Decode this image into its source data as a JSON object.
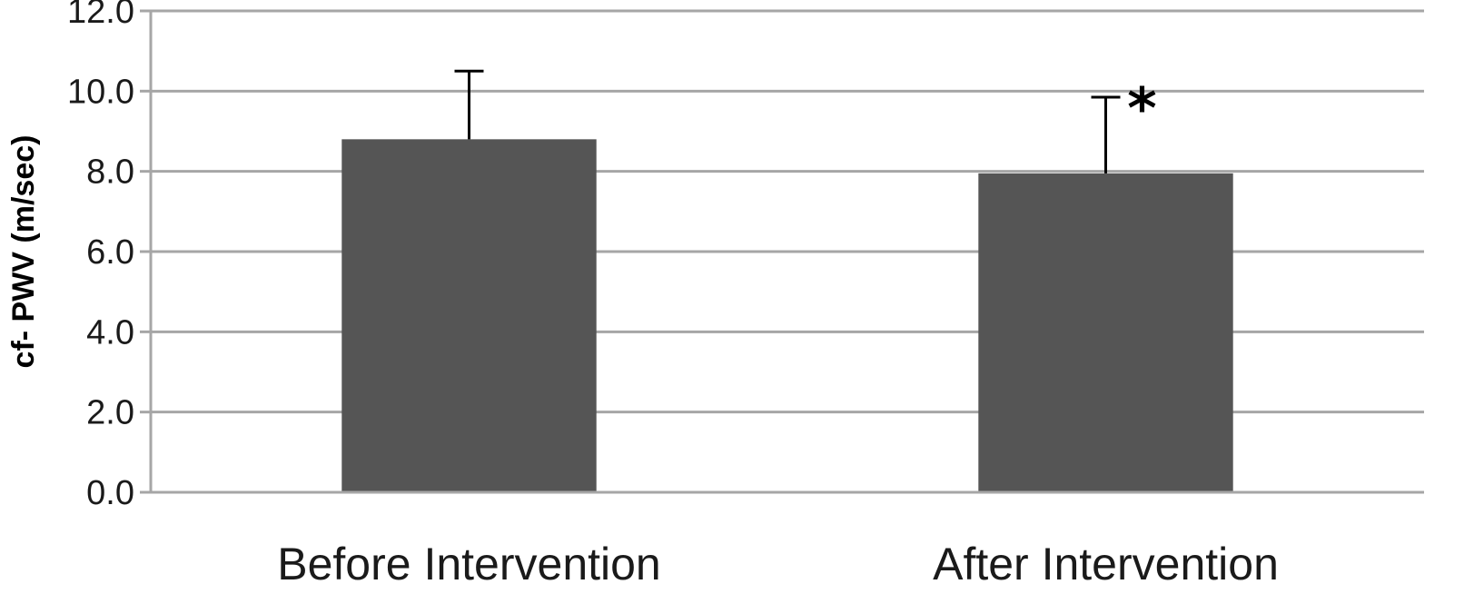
{
  "chart_data": {
    "type": "bar",
    "categories": [
      "Before Intervention",
      "After Intervention"
    ],
    "values": [
      8.8,
      7.95
    ],
    "error_bars": [
      1.7,
      1.9
    ],
    "annotations": [
      "",
      "*"
    ],
    "title": "",
    "xlabel": "",
    "ylabel": "cf- PWV (m/sec)",
    "ylim": [
      0,
      12
    ],
    "yticks": [
      "0.0",
      "2.0",
      "4.0",
      "6.0",
      "8.0",
      "10.0",
      "12.0"
    ],
    "grid": true,
    "colors": {
      "bar": "#555555",
      "grid": "#a6a6a6",
      "error_bar": "#000000"
    }
  }
}
